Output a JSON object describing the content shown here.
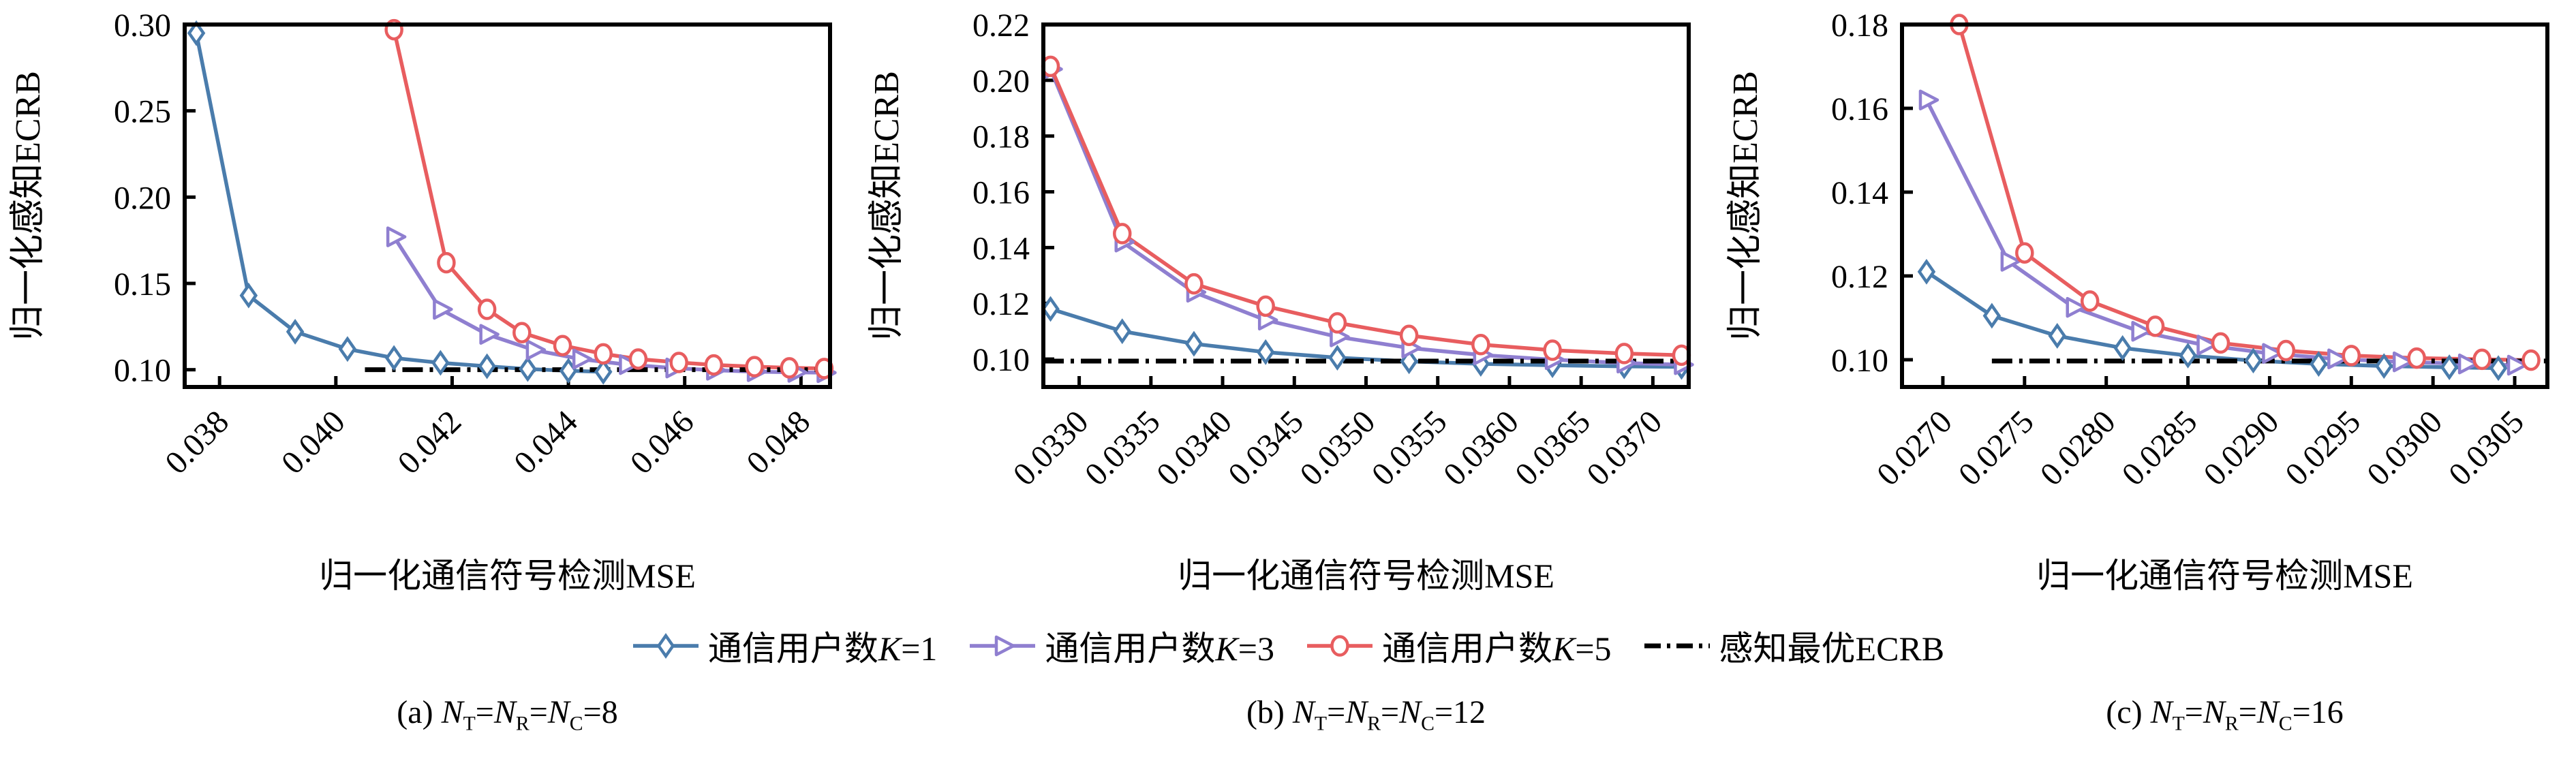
{
  "page": {
    "background": "#ffffff"
  },
  "legend": {
    "items": [
      {
        "label": "通信用户数K=1",
        "marker": "diamond",
        "color": "#4A7CAC"
      },
      {
        "label": "通信用户数K=3",
        "marker": "triangle-right",
        "color": "#8F7FD0"
      },
      {
        "label": "通信用户数K=5",
        "marker": "circle",
        "color": "#E85D5F"
      },
      {
        "label": "感知最优ECRB",
        "marker": "dashdot",
        "color": "#000000"
      }
    ]
  },
  "captions": [
    {
      "prefix": "(a)",
      "formula": "N_T=N_R=N_C=8"
    },
    {
      "prefix": "(b)",
      "formula": "N_T=N_R=N_C=12"
    },
    {
      "prefix": "(c)",
      "formula": "N_T=N_R=N_C=16"
    }
  ],
  "chart_data": [
    {
      "type": "line",
      "title": "",
      "xlabel": "归一化通信符号检测MSE",
      "ylabel": "归一化感知ECRB",
      "xlim": [
        0.0374,
        0.0485
      ],
      "ylim": [
        0.09,
        0.3
      ],
      "xticks": [
        0.038,
        0.04,
        0.042,
        0.044,
        0.046,
        0.048
      ],
      "xtick_labels": [
        "0.038",
        "0.040",
        "0.042",
        "0.044",
        "0.046",
        "0.048"
      ],
      "yticks": [
        0.1,
        0.15,
        0.2,
        0.25,
        0.3
      ],
      "ytick_labels": [
        "0.10",
        "0.15",
        "0.20",
        "0.25",
        "0.30"
      ],
      "grid": false,
      "series": [
        {
          "name": "通信用户数K=1",
          "marker": "diamond",
          "color": "#4A7CAC",
          "x": [
            0.0376,
            0.0385,
            0.0393,
            0.0402,
            0.041,
            0.0418,
            0.0426,
            0.0433,
            0.044,
            0.0446
          ],
          "y": [
            0.295,
            0.143,
            0.122,
            0.112,
            0.1068,
            0.104,
            0.102,
            0.1004,
            0.0994,
            0.0988
          ]
        },
        {
          "name": "通信用户数K=3",
          "marker": "triangle-right",
          "color": "#8F7FD0",
          "x": [
            0.041,
            0.0418,
            0.0426,
            0.0434,
            0.0442,
            0.045,
            0.0458,
            0.0465,
            0.0472,
            0.0479,
            0.0484
          ],
          "y": [
            0.177,
            0.135,
            0.1205,
            0.1115,
            0.1062,
            0.103,
            0.101,
            0.0997,
            0.0989,
            0.0985,
            0.0983
          ]
        },
        {
          "name": "通信用户数K=5",
          "marker": "circle",
          "color": "#E85D5F",
          "x": [
            0.041,
            0.0419,
            0.0426,
            0.0432,
            0.0439,
            0.0446,
            0.0452,
            0.0459,
            0.0465,
            0.0472,
            0.0478,
            0.0484
          ],
          "y": [
            0.297,
            0.162,
            0.135,
            0.1215,
            0.114,
            0.1092,
            0.1062,
            0.1042,
            0.1028,
            0.1018,
            0.1011,
            0.1007
          ]
        }
      ],
      "baseline": {
        "name": "感知最优ECRB",
        "style": "dashdot",
        "color": "#000000",
        "y": 0.1,
        "x_start": 0.0405,
        "x_end": 0.0485
      }
    },
    {
      "type": "line",
      "title": "",
      "xlabel": "归一化通信符号检测MSE",
      "ylabel": "归一化感知ECRB",
      "xlim": [
        0.03275,
        0.03725
      ],
      "ylim": [
        0.09,
        0.22
      ],
      "xticks": [
        0.033,
        0.0335,
        0.034,
        0.0345,
        0.035,
        0.0355,
        0.036,
        0.0365,
        0.037
      ],
      "xtick_labels": [
        "0.0330",
        "0.0335",
        "0.0340",
        "0.0345",
        "0.0350",
        "0.0355",
        "0.0360",
        "0.0365",
        "0.0370"
      ],
      "yticks": [
        0.1,
        0.12,
        0.14,
        0.16,
        0.18,
        0.2,
        0.22
      ],
      "ytick_labels": [
        "0.10",
        "0.12",
        "0.14",
        "0.16",
        "0.18",
        "0.20",
        "0.22"
      ],
      "grid": false,
      "series": [
        {
          "name": "通信用户数K=1",
          "marker": "diamond",
          "color": "#4A7CAC",
          "x": [
            0.0328,
            0.0333,
            0.0338,
            0.0343,
            0.0348,
            0.0353,
            0.0358,
            0.0363,
            0.0368,
            0.0372
          ],
          "y": [
            0.118,
            0.11,
            0.1055,
            0.1025,
            0.1005,
            0.0992,
            0.0983,
            0.0978,
            0.0974,
            0.0972
          ]
        },
        {
          "name": "通信用户数K=3",
          "marker": "triangle-right",
          "color": "#8F7FD0",
          "x": [
            0.0328,
            0.0333,
            0.0338,
            0.0343,
            0.0348,
            0.0353,
            0.0358,
            0.0363,
            0.0368,
            0.0372
          ],
          "y": [
            0.204,
            0.142,
            0.124,
            0.114,
            0.108,
            0.104,
            0.1015,
            0.0998,
            0.0986,
            0.098
          ]
        },
        {
          "name": "通信用户数K=5",
          "marker": "circle",
          "color": "#E85D5F",
          "x": [
            0.0328,
            0.0333,
            0.0338,
            0.0343,
            0.0348,
            0.0353,
            0.0358,
            0.0363,
            0.0368,
            0.0372
          ],
          "y": [
            0.205,
            0.145,
            0.127,
            0.119,
            0.113,
            0.1085,
            0.1052,
            0.1032,
            0.102,
            0.1014
          ]
        }
      ],
      "baseline": {
        "name": "感知最优ECRB",
        "style": "dashdot",
        "color": "#000000",
        "y": 0.0993,
        "x_start": 0.03275,
        "x_end": 0.03725
      }
    },
    {
      "type": "line",
      "title": "",
      "xlabel": "归一化通信符号检测MSE",
      "ylabel": "归一化感知ECRB",
      "xlim": [
        0.02675,
        0.0307
      ],
      "ylim": [
        0.0935,
        0.18
      ],
      "xticks": [
        0.027,
        0.0275,
        0.028,
        0.0285,
        0.029,
        0.0295,
        0.03,
        0.0305
      ],
      "xtick_labels": [
        "0.0270",
        "0.0275",
        "0.0280",
        "0.0285",
        "0.0290",
        "0.0295",
        "0.0300",
        "0.0305"
      ],
      "yticks": [
        0.1,
        0.12,
        0.14,
        0.16,
        0.18
      ],
      "ytick_labels": [
        "0.10",
        "0.12",
        "0.14",
        "0.16",
        "0.18"
      ],
      "grid": false,
      "series": [
        {
          "name": "通信用户数K=1",
          "marker": "diamond",
          "color": "#4A7CAC",
          "x": [
            0.0269,
            0.0273,
            0.0277,
            0.0281,
            0.0285,
            0.0289,
            0.0293,
            0.0297,
            0.0301,
            0.0304
          ],
          "y": [
            0.121,
            0.1105,
            0.1057,
            0.1028,
            0.101,
            0.0998,
            0.099,
            0.0985,
            0.0982,
            0.098
          ]
        },
        {
          "name": "通信用户数K=3",
          "marker": "triangle-right",
          "color": "#8F7FD0",
          "x": [
            0.0269,
            0.0274,
            0.0278,
            0.0282,
            0.0286,
            0.029,
            0.0294,
            0.0298,
            0.0302,
            0.0305
          ],
          "y": [
            0.162,
            0.1235,
            0.1125,
            0.1068,
            0.1035,
            0.1015,
            0.1002,
            0.0995,
            0.099,
            0.0987
          ]
        },
        {
          "name": "通信用户数K=5",
          "marker": "circle",
          "color": "#E85D5F",
          "x": [
            0.0271,
            0.0275,
            0.0279,
            0.0283,
            0.0287,
            0.0291,
            0.0295,
            0.0299,
            0.0303,
            0.0306
          ],
          "y": [
            0.18,
            0.1255,
            0.114,
            0.108,
            0.104,
            0.1022,
            0.101,
            0.1004,
            0.1001,
            0.0999
          ]
        }
      ],
      "baseline": {
        "name": "感知最优ECRB",
        "style": "dashdot",
        "color": "#000000",
        "y": 0.0997,
        "x_start": 0.0273,
        "x_end": 0.0307
      }
    }
  ]
}
